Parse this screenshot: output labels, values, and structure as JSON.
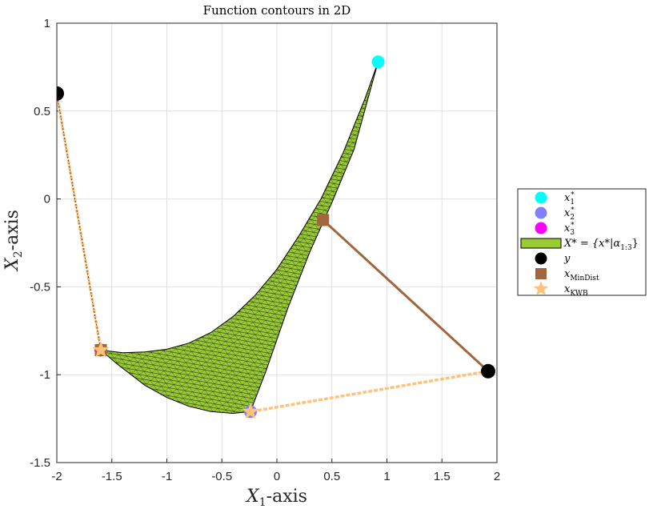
{
  "chart_data": {
    "type": "scatter",
    "title": "Function contours in 2D",
    "xlabel": {
      "main": "X",
      "sub": "1",
      "suffix": "-axis"
    },
    "ylabel": {
      "main": "X",
      "sub": "2",
      "suffix": "-axis"
    },
    "xlim": [
      -2,
      2
    ],
    "ylim": [
      -1.5,
      1
    ],
    "xticks": [
      -2,
      -1.5,
      -1,
      -0.5,
      0,
      0.5,
      1,
      1.5,
      2
    ],
    "yticks": [
      -1.5,
      -1,
      -0.5,
      0,
      0.5,
      1
    ],
    "xtick_labels": [
      "-2",
      "-1.5",
      "-1",
      "-0.5",
      "0",
      "0.5",
      "1",
      "1.5",
      "2"
    ],
    "ytick_labels": [
      "-1.5",
      "-1",
      "-0.5",
      "0",
      "0.5",
      "1"
    ],
    "grid": true,
    "legend_position": "outside-right",
    "colors": {
      "x1_star": "#00ffff",
      "x2_star": "#8080ff",
      "x3_star": "#ff00ff",
      "region_fill": "#99cc33",
      "y": "#000000",
      "mindist": "#a0663f",
      "kwb": "#ffc27a"
    },
    "points": {
      "x1_star": [
        0.92,
        0.78
      ],
      "x2_star": [
        -0.24,
        -1.21
      ],
      "x3_star": [
        -1.6,
        -0.86
      ],
      "y": [
        [
          -2.0,
          0.6
        ],
        [
          1.92,
          -0.98
        ]
      ],
      "mindist": [
        [
          -1.6,
          -0.86
        ],
        [
          0.42,
          -0.12
        ]
      ],
      "kwb": [
        [
          -1.6,
          -0.86
        ],
        [
          -0.24,
          -1.21
        ]
      ]
    },
    "region": {
      "outline": [
        [
          0.92,
          0.78
        ],
        [
          0.8,
          0.57
        ],
        [
          0.6,
          0.26
        ],
        [
          0.4,
          0.0
        ],
        [
          0.2,
          -0.21
        ],
        [
          0.0,
          -0.4
        ],
        [
          -0.2,
          -0.55
        ],
        [
          -0.4,
          -0.67
        ],
        [
          -0.6,
          -0.76
        ],
        [
          -0.8,
          -0.82
        ],
        [
          -1.0,
          -0.855
        ],
        [
          -1.2,
          -0.87
        ],
        [
          -1.4,
          -0.875
        ],
        [
          -1.6,
          -0.86
        ],
        [
          -1.45,
          -0.94
        ],
        [
          -1.2,
          -1.06
        ],
        [
          -1.0,
          -1.13
        ],
        [
          -0.8,
          -1.18
        ],
        [
          -0.6,
          -1.21
        ],
        [
          -0.4,
          -1.22
        ],
        [
          -0.24,
          -1.21
        ],
        [
          -0.1,
          -0.98
        ],
        [
          0.1,
          -0.62
        ],
        [
          0.3,
          -0.3
        ],
        [
          0.5,
          -0.02
        ],
        [
          0.7,
          0.28
        ],
        [
          0.92,
          0.78
        ]
      ]
    },
    "legend": [
      {
        "key": "x1_star",
        "label": "x",
        "sub": "1",
        "sup": "*"
      },
      {
        "key": "x2_star",
        "label": "x",
        "sub": "2",
        "sup": "*"
      },
      {
        "key": "x3_star",
        "label": "x",
        "sub": "3",
        "sup": "*"
      },
      {
        "key": "region",
        "label": "X* = {x*|α",
        "sub": "1:3",
        "suffix": "}"
      },
      {
        "key": "y",
        "label": "y"
      },
      {
        "key": "mindist",
        "label": "x",
        "sub": "MinDist"
      },
      {
        "key": "kwb",
        "label": "x",
        "sub": "KWB"
      }
    ]
  }
}
